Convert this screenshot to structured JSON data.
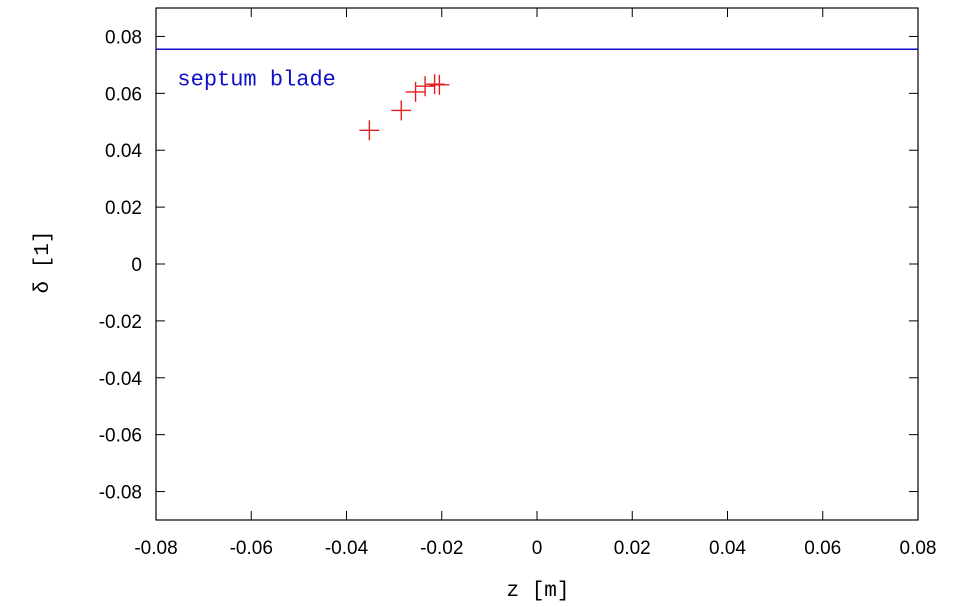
{
  "chart_data": {
    "type": "scatter",
    "xlabel": "z  [m]",
    "ylabel": "δ  [1]",
    "xlim": [
      -0.08,
      0.08
    ],
    "ylim": [
      -0.09,
      0.09
    ],
    "x_ticks": [
      -0.08,
      -0.06,
      -0.04,
      -0.02,
      0,
      0.02,
      0.04,
      0.06,
      0.08
    ],
    "x_tick_labels": [
      "-0.08",
      "-0.06",
      "-0.04",
      "-0.02",
      "0",
      "0.02",
      "0.04",
      "0.06",
      "0.08"
    ],
    "y_ticks": [
      -0.08,
      -0.06,
      -0.04,
      -0.02,
      0,
      0.02,
      0.04,
      0.06,
      0.08
    ],
    "y_tick_labels": [
      "-0.08",
      "-0.06",
      "-0.04",
      "-0.02",
      "0",
      "0.02",
      "0.04",
      "0.06",
      "0.08"
    ],
    "grid": false,
    "series": [
      {
        "marker": "plus",
        "color": "#e02020",
        "points": [
          {
            "x": -0.0352,
            "y": 0.047
          },
          {
            "x": -0.0285,
            "y": 0.054
          },
          {
            "x": -0.0255,
            "y": 0.0605
          },
          {
            "x": -0.0235,
            "y": 0.0625
          },
          {
            "x": -0.0215,
            "y": 0.0632
          },
          {
            "x": -0.0205,
            "y": 0.063
          }
        ]
      }
    ],
    "reference_lines": [
      {
        "orientation": "horizontal",
        "y": 0.0755,
        "color": "#1010c8"
      }
    ],
    "annotations": [
      {
        "text": "septum blade",
        "x": -0.0755,
        "y": 0.0628,
        "color": "#1010c8"
      }
    ]
  }
}
